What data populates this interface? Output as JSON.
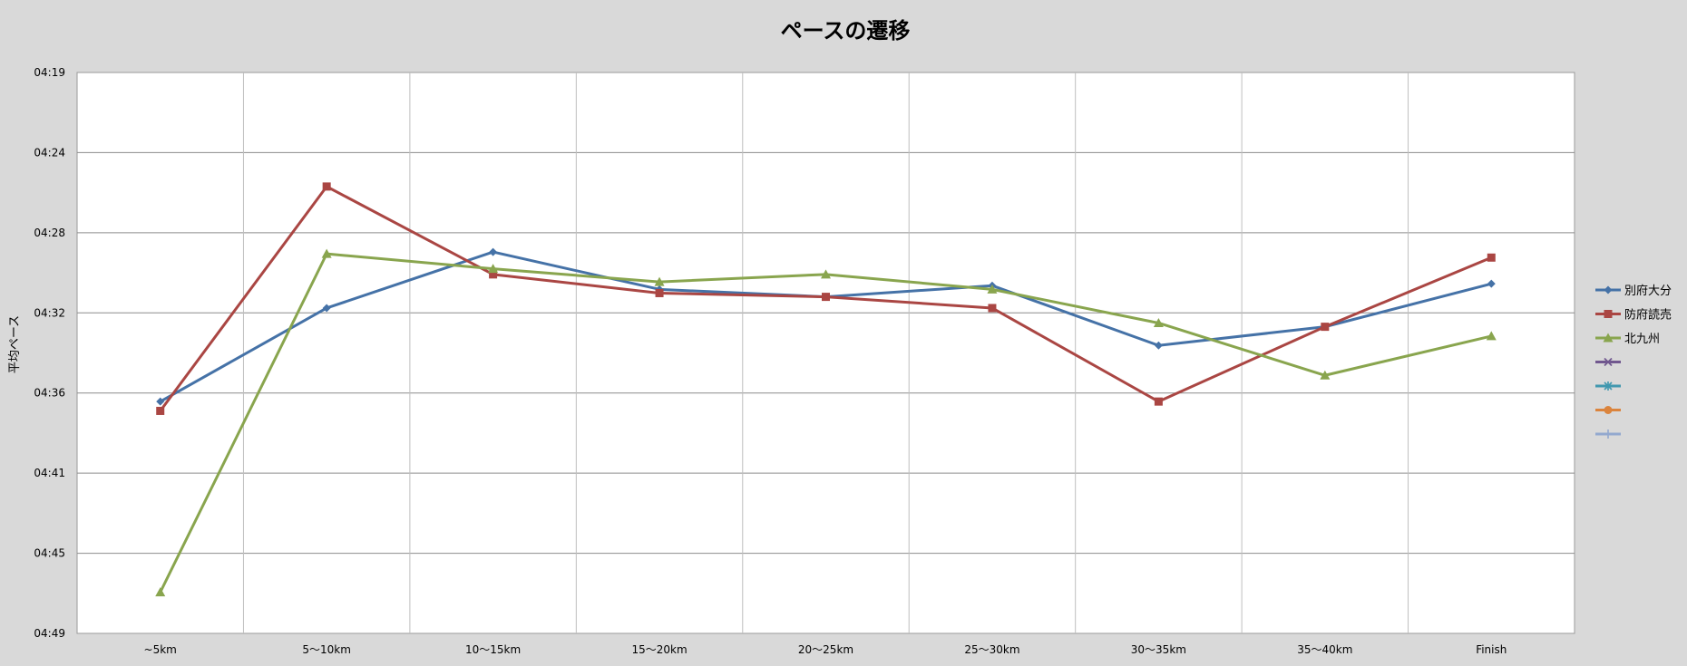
{
  "chart_data": {
    "type": "line",
    "title": "ペースの遷移",
    "ylabel": "平均ペース",
    "xlabel": "",
    "categories": [
      "~5km",
      "5～10km",
      "10～15km",
      "15～20km",
      "20～25km",
      "25～30km",
      "30～35km",
      "35～40km",
      "Finish"
    ],
    "y_axis": {
      "reversed": true,
      "min_seconds": 259,
      "max_seconds": 289,
      "tick_labels": [
        "04:19",
        "04:24",
        "04:28",
        "04:32",
        "04:36",
        "04:41",
        "04:45",
        "04:49"
      ],
      "tick_step_seconds": 4.3
    },
    "grid": true,
    "legend_position": "right",
    "series": [
      {
        "name": "別府大分",
        "color": "#4572a7",
        "marker": "diamond",
        "values_seconds": [
          276.6,
          271.6,
          268.6,
          270.6,
          271.0,
          270.4,
          273.6,
          272.6,
          270.3
        ]
      },
      {
        "name": "防府読売",
        "color": "#aa4643",
        "marker": "square",
        "values_seconds": [
          277.1,
          265.1,
          269.8,
          270.8,
          271.0,
          271.6,
          276.6,
          272.6,
          268.9
        ]
      },
      {
        "name": "北九州",
        "color": "#89a54e",
        "marker": "triangle",
        "values_seconds": [
          286.8,
          268.7,
          269.5,
          270.2,
          269.8,
          270.6,
          272.4,
          275.2,
          273.1
        ]
      },
      {
        "name": "",
        "color": "#71588f",
        "marker": "x",
        "values_seconds": []
      },
      {
        "name": "",
        "color": "#4198af",
        "marker": "star",
        "values_seconds": []
      },
      {
        "name": "",
        "color": "#db843d",
        "marker": "circle",
        "values_seconds": []
      },
      {
        "name": "",
        "color": "#93a9cf",
        "marker": "plus",
        "values_seconds": []
      }
    ]
  }
}
